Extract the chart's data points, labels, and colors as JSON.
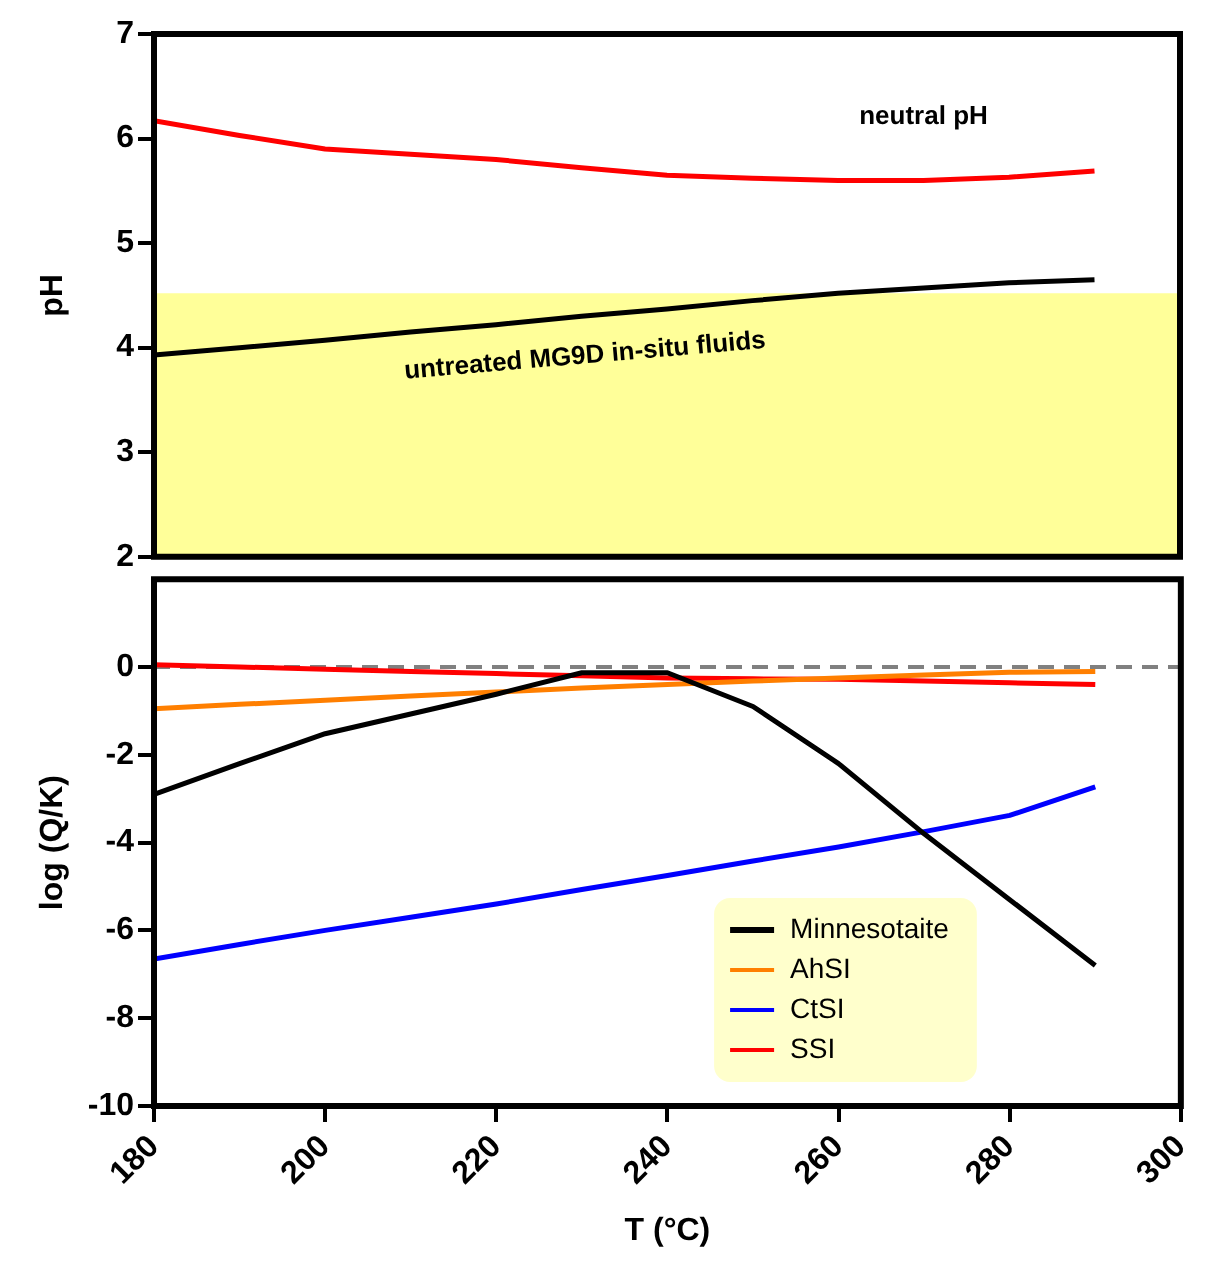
{
  "chart_data": [
    {
      "type": "line",
      "ylabel": "pH",
      "xlim": [
        180,
        300
      ],
      "ylim": [
        2,
        7
      ],
      "yticks": [
        2,
        3,
        4,
        5,
        6,
        7
      ],
      "tick_labels": "y",
      "grid": false,
      "legend": false,
      "marker": "none",
      "x": [
        180,
        190,
        200,
        210,
        220,
        230,
        240,
        250,
        260,
        270,
        280,
        290
      ],
      "series": [
        {
          "name": "neutral pH",
          "color": "#ff0000",
          "values": [
            6.17,
            6.03,
            5.9,
            5.85,
            5.8,
            5.72,
            5.65,
            5.62,
            5.6,
            5.6,
            5.63,
            5.69
          ]
        },
        {
          "name": "untreated MG9D in-situ fluids",
          "color": "#000000",
          "values": [
            3.93,
            4.0,
            4.07,
            4.15,
            4.22,
            4.3,
            4.37,
            4.45,
            4.52,
            4.57,
            4.62,
            4.65
          ]
        }
      ],
      "bands": [
        {
          "axis": "y",
          "from": 2,
          "to": 4.52,
          "color": "#ffff99"
        }
      ]
    },
    {
      "type": "line",
      "xlabel": "T (°C)",
      "ylabel": "log (Q/K)",
      "xlim": [
        180,
        300
      ],
      "xticks": [
        180,
        200,
        220,
        240,
        260,
        280,
        300
      ],
      "ylim": [
        -10,
        2
      ],
      "yticks": [
        -10,
        -8,
        -6,
        -4,
        -2,
        0
      ],
      "grid": false,
      "legend": "bottom right",
      "marker": "none",
      "x": [
        180,
        190,
        200,
        210,
        220,
        230,
        240,
        250,
        260,
        270,
        280,
        290
      ],
      "series": [
        {
          "name": "Minnesotaite",
          "color": "#000000",
          "values": [
            -2.9,
            -2.2,
            -1.52,
            -1.07,
            -0.62,
            -0.13,
            -0.13,
            -0.9,
            -2.2,
            -3.8,
            -5.3,
            -6.8
          ]
        },
        {
          "name": "AhSI",
          "color": "#ff7f00",
          "values": [
            -0.95,
            -0.85,
            -0.76,
            -0.66,
            -0.57,
            -0.48,
            -0.4,
            -0.32,
            -0.25,
            -0.18,
            -0.12,
            -0.1
          ]
        },
        {
          "name": "CtSI",
          "color": "#0000ff",
          "values": [
            -6.65,
            -6.32,
            -6.0,
            -5.7,
            -5.4,
            -5.07,
            -4.75,
            -4.42,
            -4.1,
            -3.75,
            -3.38,
            -2.73
          ]
        },
        {
          "name": "SSI",
          "color": "#ff0000",
          "values": [
            0.05,
            0.0,
            -0.05,
            -0.1,
            -0.15,
            -0.2,
            -0.25,
            -0.27,
            -0.28,
            -0.32,
            -0.36,
            -0.4
          ]
        }
      ],
      "ref_lines": [
        {
          "axis": "y",
          "value": 0,
          "color": "#808080",
          "line_style": "dashed"
        }
      ]
    }
  ]
}
